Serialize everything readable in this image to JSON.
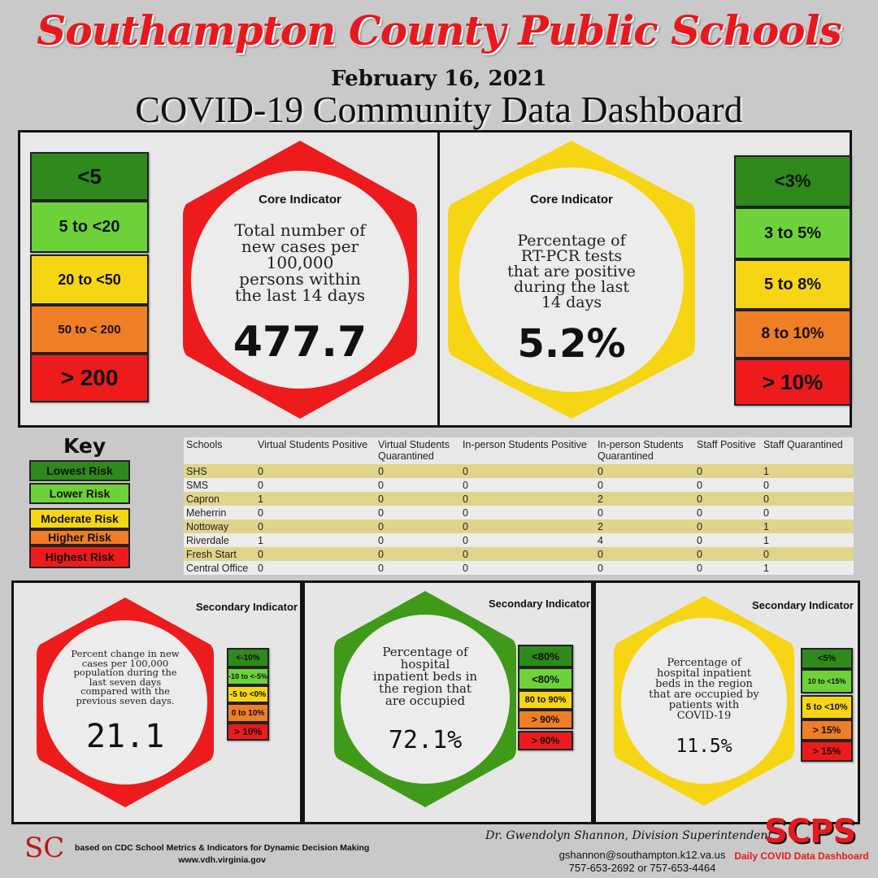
{
  "header": {
    "title": "Southampton County Public Schools",
    "date": "February 16, 2021",
    "subtitle": "COVID-19 Community Data Dashboard"
  },
  "core": [
    {
      "heading": "Core Indicator",
      "description_lines": [
        "Total number of",
        "new cases per",
        "100,000",
        "persons within",
        "the last 14 days"
      ],
      "value": "477.7",
      "scale": [
        "<5",
        "5 to  <20",
        "20 to <50",
        "50 to < 200",
        "> 200"
      ]
    },
    {
      "heading": "Core Indicator",
      "description_lines": [
        "Percentage of",
        "RT-PCR tests",
        "that are positive",
        "during the last",
        "14 days"
      ],
      "value": "5.2%",
      "scale": [
        "<3%",
        "3 to 5%",
        "5 to 8%",
        "8 to 10%",
        "> 10%"
      ]
    }
  ],
  "key": {
    "title": "Key",
    "items": [
      "Lowest Risk",
      "Lower Risk",
      "Moderate Risk",
      "Higher Risk",
      "Highest Risk"
    ]
  },
  "table": {
    "headers": [
      "Schools",
      "Virtual Students Positive",
      "Virtual Students Quarantined",
      "In-person Students Positive",
      "In-person Students Quarantined",
      "Staff Positive",
      "Staff Quarantined"
    ],
    "rows": [
      [
        "SHS",
        "0",
        "0",
        "0",
        "0",
        "0",
        "1"
      ],
      [
        "SMS",
        "0",
        "0",
        "0",
        "0",
        "0",
        "0"
      ],
      [
        "Capron",
        "1",
        "0",
        "0",
        "2",
        "0",
        "0"
      ],
      [
        "Meherrin",
        "0",
        "0",
        "0",
        "0",
        "0",
        "0"
      ],
      [
        "Nottoway",
        "0",
        "0",
        "0",
        "2",
        "0",
        "1"
      ],
      [
        "Riverdale",
        "1",
        "0",
        "0",
        "4",
        "0",
        "1"
      ],
      [
        "Fresh Start",
        "0",
        "0",
        "0",
        "0",
        "0",
        "0"
      ],
      [
        "Central Office",
        "0",
        "0",
        "0",
        "0",
        "0",
        "1"
      ]
    ]
  },
  "secondary": [
    {
      "heading": "Secondary Indicator",
      "description_lines": [
        "Percent change in new",
        "cases per 100,000",
        "population during the",
        "last seven days",
        "compared with the",
        "previous seven days."
      ],
      "value": "21.1",
      "scale": [
        "<-10%",
        "-10 to <-5%",
        "-5 to <0%",
        "0 to 10%",
        "> 10%"
      ]
    },
    {
      "heading": "Secondary Indicator",
      "description_lines": [
        "Percentage of",
        "hospital",
        "inpatient beds in",
        "the region that",
        "are occupied"
      ],
      "value": "72.1%",
      "scale": [
        "<80%",
        "<80%",
        "80 to 90%",
        "> 90%",
        "> 90%"
      ]
    },
    {
      "heading": "Secondary Indicator",
      "description_lines": [
        "Percentage of",
        "hospital inpatient",
        "beds in the region",
        "that are occupied by",
        "patients with",
        "COVID-19"
      ],
      "value": "11.5%",
      "scale": [
        "<5%",
        "10 to <15%",
        "5 to <10%",
        "> 15%",
        "> 15%"
      ]
    }
  ],
  "footer": {
    "logo_text": "SC",
    "note_line1": "based on CDC School Metrics & Indicators for Dynamic Decision Making",
    "note_line2": "www.vdh.virginia.gov",
    "superintendent": "Dr. Gwendolyn Shannon, Division Superintendent",
    "email": "gshannon@southampton.k12.va.us",
    "phone": "757-653-2692 or 757-653-4464",
    "brand": "SCPS",
    "brand_sub": "Daily COVID Data Dashboard"
  },
  "colors": {
    "lowest": "#2e8a1b",
    "lower": "#6dd23a",
    "moderate": "#f6d614",
    "higher": "#f07e25",
    "highest": "#ee1b1c",
    "title_red": "#e8181c"
  }
}
